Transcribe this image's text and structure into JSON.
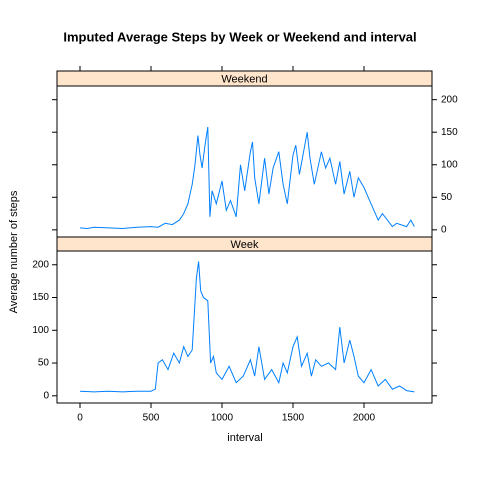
{
  "chart_data": {
    "type": "line",
    "title": "Imputed Average Steps by Week or Weekend and interval",
    "xlabel": "interval",
    "ylabel": "Average number of steps",
    "xlim": [
      -162,
      2479
    ],
    "xticks": [
      0,
      500,
      1000,
      1500,
      2000
    ],
    "ylim": [
      -11,
      221
    ],
    "yticks": [
      0,
      50,
      100,
      150,
      200
    ],
    "series": [
      {
        "name": "Weekend",
        "color": "#0080ff",
        "x": [
          0,
          50,
          100,
          200,
          300,
          400,
          500,
          550,
          600,
          650,
          700,
          730,
          760,
          790,
          810,
          830,
          845,
          860,
          880,
          900,
          915,
          930,
          960,
          1000,
          1030,
          1060,
          1100,
          1130,
          1160,
          1200,
          1215,
          1230,
          1260,
          1300,
          1330,
          1360,
          1400,
          1430,
          1460,
          1500,
          1520,
          1545,
          1600,
          1620,
          1650,
          1700,
          1730,
          1760,
          1800,
          1830,
          1860,
          1900,
          1930,
          1960,
          2000,
          2030,
          2100,
          2130,
          2200,
          2230,
          2300,
          2330,
          2355
        ],
        "values": [
          3,
          2,
          4,
          3,
          2,
          4,
          5,
          4,
          10,
          8,
          15,
          25,
          40,
          70,
          100,
          145,
          115,
          95,
          130,
          158,
          20,
          60,
          40,
          75,
          30,
          45,
          20,
          100,
          60,
          120,
          135,
          80,
          40,
          110,
          55,
          95,
          120,
          70,
          40,
          115,
          130,
          85,
          150,
          110,
          70,
          120,
          95,
          110,
          70,
          105,
          55,
          90,
          50,
          80,
          65,
          50,
          15,
          25,
          5,
          10,
          5,
          15,
          5
        ]
      },
      {
        "name": "Week",
        "color": "#0080ff",
        "x": [
          0,
          100,
          200,
          300,
          400,
          500,
          530,
          550,
          580,
          620,
          660,
          700,
          730,
          760,
          790,
          820,
          835,
          850,
          870,
          900,
          920,
          940,
          960,
          1000,
          1050,
          1100,
          1150,
          1200,
          1230,
          1260,
          1300,
          1350,
          1400,
          1430,
          1460,
          1500,
          1530,
          1560,
          1600,
          1630,
          1660,
          1700,
          1750,
          1800,
          1830,
          1860,
          1900,
          1930,
          1960,
          2000,
          2050,
          2100,
          2150,
          2200,
          2250,
          2300,
          2355
        ],
        "values": [
          7,
          6,
          7,
          6,
          7,
          7,
          10,
          50,
          55,
          40,
          65,
          50,
          75,
          60,
          70,
          180,
          205,
          160,
          150,
          145,
          50,
          60,
          35,
          25,
          45,
          20,
          30,
          55,
          30,
          75,
          25,
          40,
          20,
          50,
          35,
          75,
          90,
          45,
          65,
          30,
          55,
          45,
          50,
          40,
          105,
          50,
          85,
          60,
          30,
          20,
          40,
          15,
          25,
          10,
          15,
          8,
          6
        ]
      }
    ],
    "strip_color": "#ffe5cc"
  }
}
